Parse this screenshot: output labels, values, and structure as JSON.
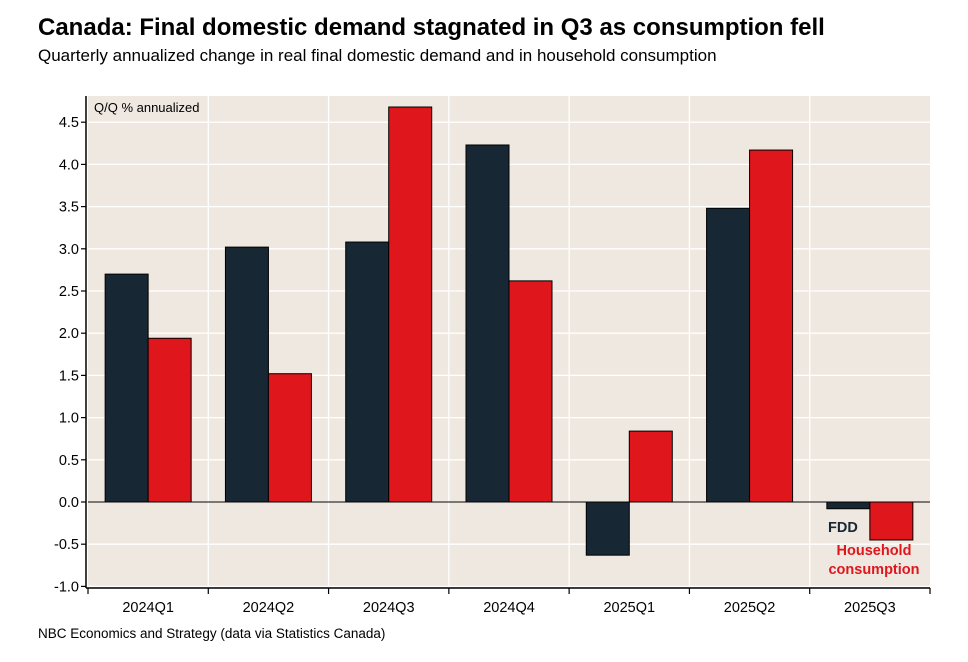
{
  "chart_data": {
    "type": "bar",
    "title": "Canada: Final domestic demand stagnated in Q3 as consumption fell",
    "subtitle": "Quarterly annualized change in real final domestic demand and in household consumption",
    "ylabel": "Q/Q % annualized",
    "xlabel": "",
    "ylim": [
      -1.0,
      4.8
    ],
    "yticks": [
      "-1.0",
      "-0.5",
      "0.0",
      "0.5",
      "1.0",
      "1.5",
      "2.0",
      "2.5",
      "3.0",
      "3.5",
      "4.0",
      "4.5"
    ],
    "grid": true,
    "categories": [
      "2024Q1",
      "2024Q2",
      "2024Q3",
      "2024Q4",
      "2025Q1",
      "2025Q2",
      "2025Q3"
    ],
    "series": [
      {
        "name": "FDD",
        "color": "#172733",
        "values": [
          2.7,
          3.02,
          3.08,
          4.23,
          -0.63,
          3.48,
          -0.08
        ]
      },
      {
        "name": "Household consumption",
        "color": "#e0161d",
        "values": [
          1.94,
          1.52,
          4.68,
          2.62,
          0.84,
          4.17,
          -0.45
        ]
      }
    ],
    "annotations": {
      "fdd": "FDD",
      "hc_line1": "Household",
      "hc_line2": "consumption"
    },
    "source": "NBC Economics and Strategy (data via Statistics Canada)"
  }
}
